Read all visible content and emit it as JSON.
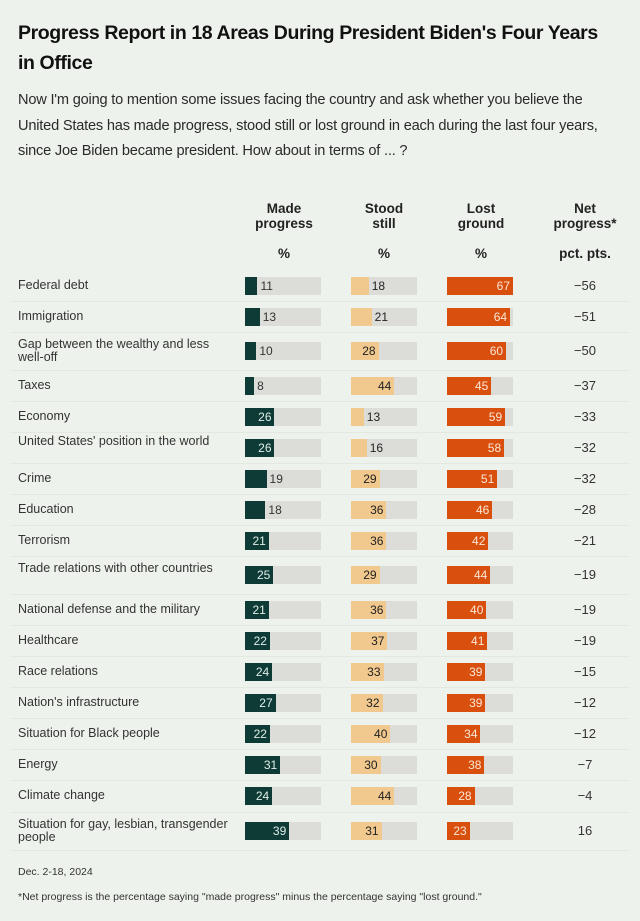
{
  "header": {
    "title": "Progress Report in 18 Areas During President Biden's Four Years in Office",
    "subtitle": "Now I'm going to mention some issues facing the country and ask whether you believe the United States has made progress, stood still or lost ground in each during the last four years, since Joe Biden became president. How about in terms of ... ?"
  },
  "columns": [
    {
      "key": "made",
      "title": "Made progress",
      "unit": "%",
      "color": "#0f3b36"
    },
    {
      "key": "still",
      "title": "Stood still",
      "unit": "%",
      "color": "#f1c88e"
    },
    {
      "key": "lost",
      "title": "Lost ground",
      "unit": "%",
      "color": "#d94f0d"
    },
    {
      "key": "net",
      "title": "Net progress*",
      "unit": "pct. pts."
    }
  ],
  "track_color": "#dcddd8",
  "footer": {
    "date": "Dec. 2-18, 2024",
    "note": "*Net progress is the percentage saying \"made progress\" minus the percentage saying \"lost ground.\""
  },
  "chart_data": {
    "type": "table",
    "title": "Progress Report in 18 Areas During President Biden's Four Years in Office",
    "scale_max": 67,
    "categories": [
      "Federal debt",
      "Immigration",
      "Gap between the wealthy and less well-off",
      "Taxes",
      "Economy",
      "United States' position in the world",
      "Crime",
      "Education",
      "Terrorism",
      "Trade relations with other countries",
      "National defense and the military",
      "Healthcare",
      "Race relations",
      "Nation's infrastructure",
      "Situation for Black people",
      "Energy",
      "Climate change",
      "Situation for gay, lesbian, transgender people"
    ],
    "series": [
      {
        "name": "Made progress",
        "values": [
          11,
          13,
          10,
          8,
          26,
          26,
          19,
          18,
          21,
          25,
          21,
          22,
          24,
          27,
          22,
          31,
          24,
          39
        ]
      },
      {
        "name": "Stood still",
        "values": [
          18,
          21,
          28,
          44,
          13,
          16,
          29,
          36,
          36,
          29,
          36,
          37,
          33,
          32,
          40,
          30,
          44,
          31
        ]
      },
      {
        "name": "Lost ground",
        "values": [
          67,
          64,
          60,
          45,
          59,
          58,
          51,
          46,
          42,
          44,
          40,
          41,
          39,
          39,
          34,
          38,
          28,
          23
        ]
      },
      {
        "name": "Net progress",
        "values": [
          "−56",
          "−51",
          "−50",
          "−37",
          "−33",
          "−32",
          "−32",
          "−28",
          "−21",
          "−19",
          "−19",
          "−19",
          "−15",
          "−12",
          "−12",
          "−7",
          "−4",
          "16"
        ]
      }
    ]
  }
}
